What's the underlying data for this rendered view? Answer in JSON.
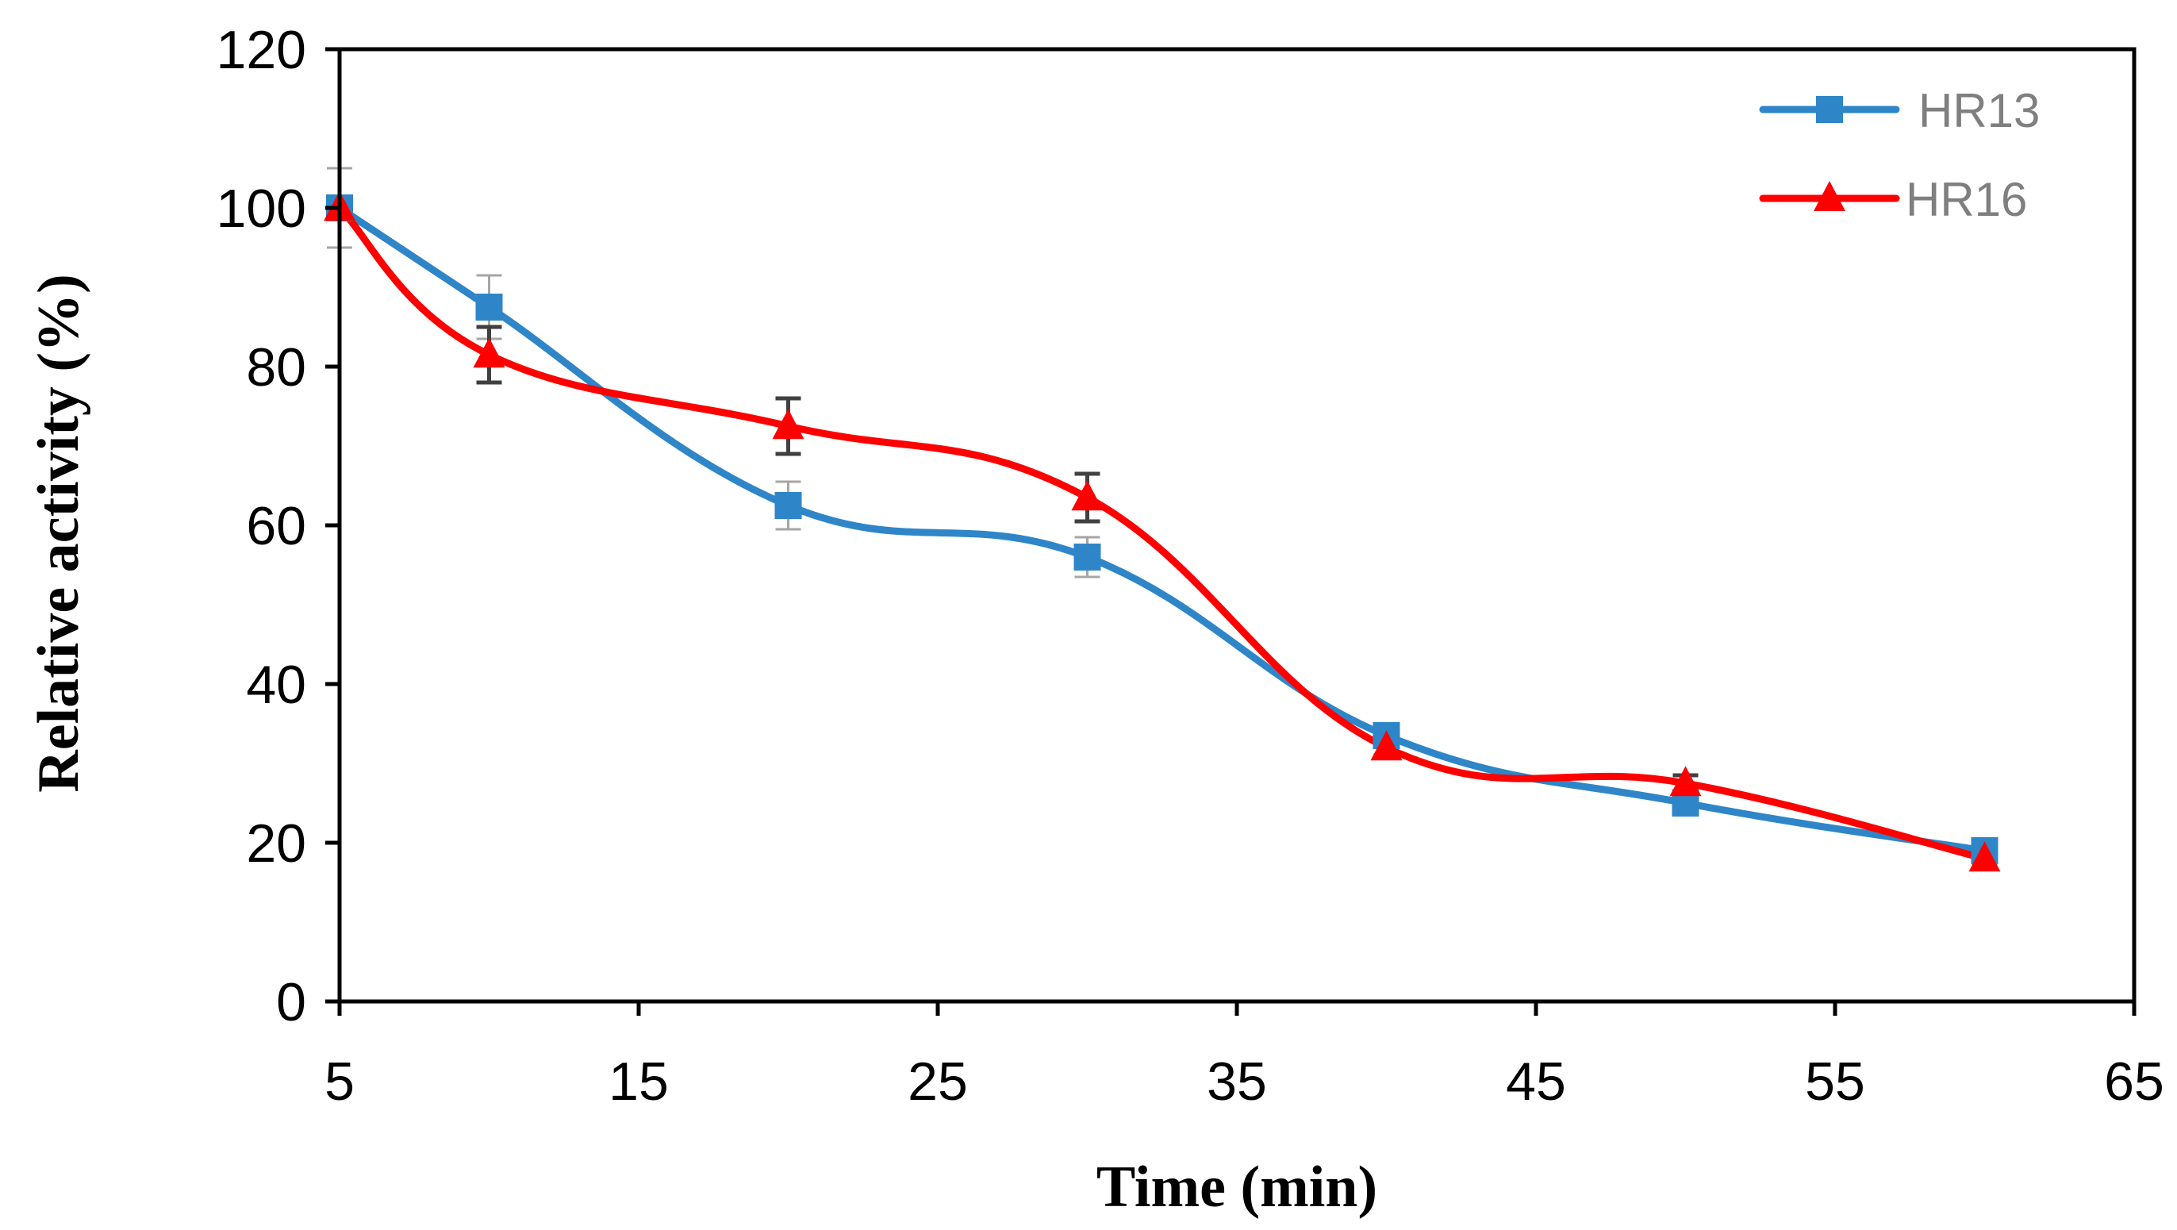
{
  "chart_data": {
    "type": "line",
    "title": "",
    "xlabel": "Time (min)",
    "ylabel": "Relative activity (%)",
    "xlim": [
      5,
      65
    ],
    "ylim": [
      0,
      120
    ],
    "xticks": [
      5,
      15,
      25,
      35,
      45,
      55,
      65
    ],
    "yticks": [
      0,
      20,
      40,
      60,
      80,
      100,
      120
    ],
    "grid": false,
    "smooth": true,
    "legend_position": "top-right",
    "series": [
      {
        "name": "HR13",
        "color": "#2E86C8",
        "marker": "square",
        "x": [
          5,
          10,
          20,
          30,
          40,
          50,
          60
        ],
        "values": [
          100,
          87.5,
          62.5,
          56,
          33.5,
          25,
          19
        ],
        "error": [
          5,
          4,
          3,
          2.5,
          1,
          1,
          1
        ],
        "error_color": "#a6a6a6"
      },
      {
        "name": "HR16",
        "color": "#FF0000",
        "marker": "triangle",
        "x": [
          5,
          10,
          20,
          30,
          40,
          50,
          60
        ],
        "values": [
          100,
          81.5,
          72.5,
          63.5,
          32,
          27.5,
          18
        ],
        "error": [
          0.5,
          3.5,
          3.5,
          3,
          1,
          1,
          0.5
        ],
        "error_color": "#404040"
      }
    ]
  }
}
